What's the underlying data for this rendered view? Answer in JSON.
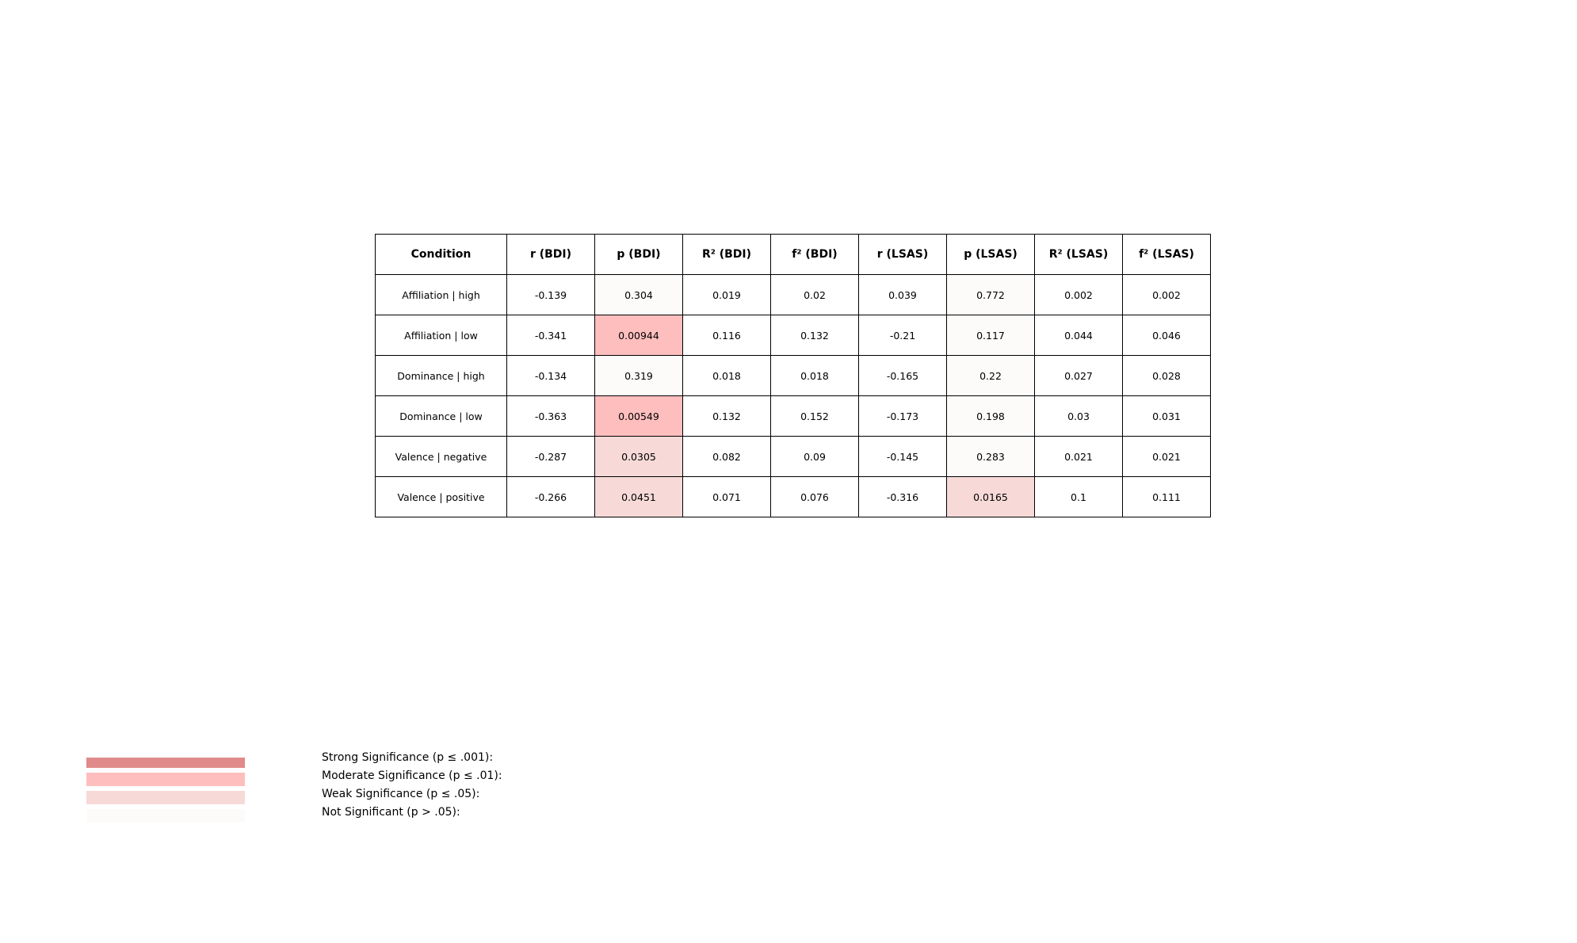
{
  "chart_data": {
    "type": "table",
    "columns": [
      "Condition",
      "r (BDI)",
      "p (BDI)",
      "R² (BDI)",
      "f² (BDI)",
      "r (LSAS)",
      "p (LSAS)",
      "R² (LSAS)",
      "f² (LSAS)"
    ],
    "rows": [
      [
        "Affiliation | high",
        "-0.139",
        "0.304",
        "0.019",
        "0.02",
        "0.039",
        "0.772",
        "0.002",
        "0.002"
      ],
      [
        "Affiliation | low",
        "-0.341",
        "0.00944",
        "0.116",
        "0.132",
        "-0.21",
        "0.117",
        "0.044",
        "0.046"
      ],
      [
        "Dominance | high",
        "-0.134",
        "0.319",
        "0.018",
        "0.018",
        "-0.165",
        "0.22",
        "0.027",
        "0.028"
      ],
      [
        "Dominance | low",
        "-0.363",
        "0.00549",
        "0.132",
        "0.152",
        "-0.173",
        "0.198",
        "0.03",
        "0.031"
      ],
      [
        "Valence | negative",
        "-0.287",
        "0.0305",
        "0.082",
        "0.09",
        "-0.145",
        "0.283",
        "0.021",
        "0.021"
      ],
      [
        "Valence | positive",
        "-0.266",
        "0.0451",
        "0.071",
        "0.076",
        "-0.316",
        "0.0165",
        "0.1",
        "0.111"
      ]
    ],
    "significance_levels": [
      {
        "label": "Strong Significance (p ≤ .001):",
        "color": "#e08a8a",
        "max_p": 0.001
      },
      {
        "label": "Moderate Significance (p ≤ .01):",
        "color": "#ffbebe",
        "max_p": 0.01
      },
      {
        "label": "Weak Significance (p ≤ .05):",
        "color": "#f7dad8",
        "max_p": 0.05
      },
      {
        "label": "Not Significant (p > .05):",
        "color": "#fdfbfa",
        "max_p": 1
      }
    ],
    "p_columns": [
      2,
      6
    ]
  }
}
